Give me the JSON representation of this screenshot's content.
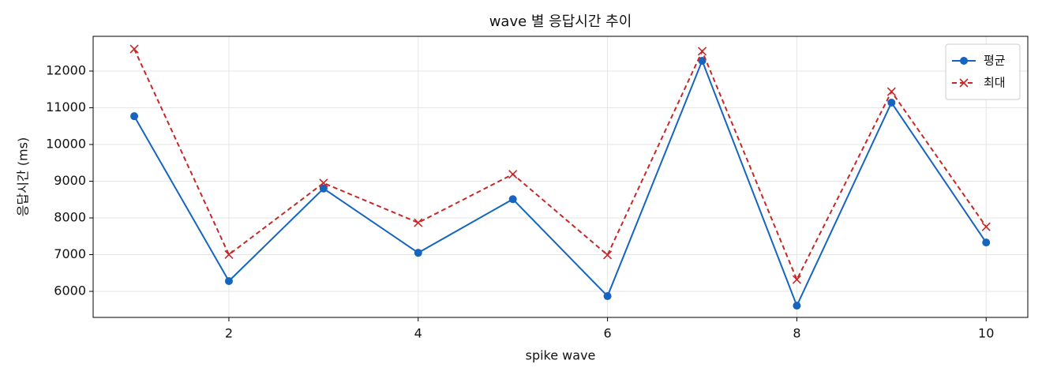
{
  "chart_data": {
    "type": "line",
    "title": "wave 별 응답시간 추이",
    "x_label": "spike wave",
    "y_label": "응답시간 (ms)",
    "x": [
      1,
      2,
      3,
      4,
      5,
      6,
      7,
      8,
      9,
      10
    ],
    "series": [
      {
        "name": "평균",
        "color": "#1565c0",
        "linestyle": "solid",
        "marker": "circle",
        "values": [
          10770,
          6280,
          8800,
          7050,
          8510,
          5870,
          12280,
          5610,
          11140,
          7330
        ]
      },
      {
        "name": "최대",
        "color": "#c62828",
        "linestyle": "dashed",
        "marker": "x",
        "values": [
          12600,
          7000,
          8950,
          7870,
          9190,
          6990,
          12540,
          6320,
          11440,
          7760
        ]
      }
    ],
    "xlim": [
      0.566,
      10.44
    ],
    "ylim": [
      5290,
      12946
    ],
    "xticks": [
      2,
      4,
      6,
      8,
      10
    ],
    "yticks": [
      6000,
      7000,
      8000,
      9000,
      10000,
      11000,
      12000
    ],
    "grid": true,
    "legend": "upper right"
  }
}
